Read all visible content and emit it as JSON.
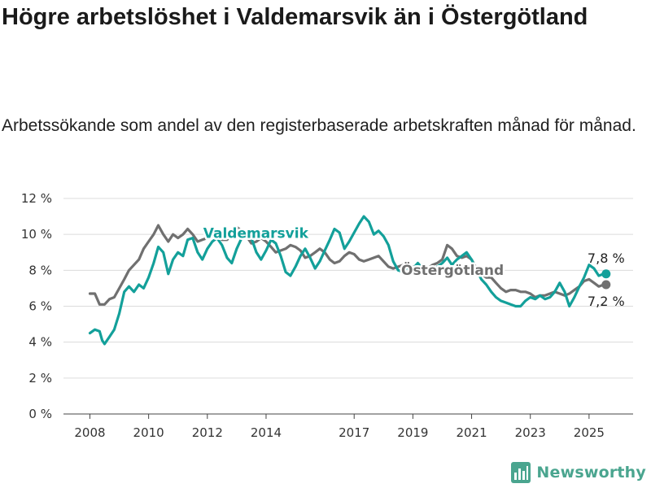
{
  "header": {
    "title": "Högre arbetslöshet i Valdemarsvik än i Östergötland",
    "subtitle": "Arbetssökande som andel av den registerbaserade arbetskraften månad för månad."
  },
  "brand": {
    "name": "Newsworthy",
    "color": "#4aa58f",
    "icon": "bar-chart-icon"
  },
  "chart_data": {
    "type": "line",
    "x_ticks": [
      "2008",
      "2010",
      "2012",
      "2014",
      "2017",
      "2019",
      "2021",
      "2023",
      "2025"
    ],
    "y_ticks": [
      "0 %",
      "2 %",
      "4 %",
      "6 %",
      "8 %",
      "10 %",
      "12 %"
    ],
    "ylim": [
      0,
      12
    ],
    "xlim": [
      2007.1,
      2026.5
    ],
    "grid": true,
    "series": [
      {
        "name": "Östergötland",
        "color": "#707070",
        "end_label": "7,2 %",
        "points": [
          [
            2008.0,
            6.7
          ],
          [
            2008.17,
            6.7
          ],
          [
            2008.33,
            6.1
          ],
          [
            2008.5,
            6.1
          ],
          [
            2008.67,
            6.4
          ],
          [
            2008.83,
            6.5
          ],
          [
            2009.0,
            7.0
          ],
          [
            2009.17,
            7.5
          ],
          [
            2009.33,
            8.0
          ],
          [
            2009.5,
            8.3
          ],
          [
            2009.67,
            8.6
          ],
          [
            2009.83,
            9.2
          ],
          [
            2010.0,
            9.6
          ],
          [
            2010.17,
            10.0
          ],
          [
            2010.33,
            10.5
          ],
          [
            2010.5,
            10.0
          ],
          [
            2010.67,
            9.6
          ],
          [
            2010.83,
            10.0
          ],
          [
            2011.0,
            9.8
          ],
          [
            2011.17,
            10.0
          ],
          [
            2011.33,
            10.3
          ],
          [
            2011.5,
            10.0
          ],
          [
            2011.67,
            9.6
          ],
          [
            2011.83,
            9.7
          ],
          [
            2012.0,
            9.8
          ],
          [
            2012.17,
            9.9
          ],
          [
            2012.33,
            10.0
          ],
          [
            2012.5,
            9.7
          ],
          [
            2012.67,
            9.7
          ],
          [
            2012.83,
            10.0
          ],
          [
            2013.0,
            10.4
          ],
          [
            2013.17,
            10.2
          ],
          [
            2013.33,
            9.9
          ],
          [
            2013.5,
            9.5
          ],
          [
            2013.67,
            9.6
          ],
          [
            2013.83,
            9.8
          ],
          [
            2014.0,
            9.6
          ],
          [
            2014.17,
            9.3
          ],
          [
            2014.33,
            9.0
          ],
          [
            2014.5,
            9.1
          ],
          [
            2014.67,
            9.2
          ],
          [
            2014.83,
            9.4
          ],
          [
            2015.0,
            9.3
          ],
          [
            2015.17,
            9.1
          ],
          [
            2015.33,
            8.7
          ],
          [
            2015.5,
            8.8
          ],
          [
            2015.67,
            9.0
          ],
          [
            2015.83,
            9.2
          ],
          [
            2016.0,
            9.0
          ],
          [
            2016.17,
            8.6
          ],
          [
            2016.33,
            8.4
          ],
          [
            2016.5,
            8.5
          ],
          [
            2016.67,
            8.8
          ],
          [
            2016.83,
            9.0
          ],
          [
            2017.0,
            8.9
          ],
          [
            2017.17,
            8.6
          ],
          [
            2017.33,
            8.5
          ],
          [
            2017.5,
            8.6
          ],
          [
            2017.67,
            8.7
          ],
          [
            2017.83,
            8.8
          ],
          [
            2018.0,
            8.5
          ],
          [
            2018.17,
            8.2
          ],
          [
            2018.33,
            8.1
          ],
          [
            2018.5,
            8.2
          ],
          [
            2018.67,
            8.3
          ],
          [
            2018.83,
            8.3
          ],
          [
            2019.0,
            8.2
          ],
          [
            2019.17,
            8.1
          ],
          [
            2019.33,
            8.0
          ],
          [
            2019.5,
            8.1
          ],
          [
            2019.67,
            8.3
          ],
          [
            2019.83,
            8.4
          ],
          [
            2020.0,
            8.6
          ],
          [
            2020.17,
            9.4
          ],
          [
            2020.33,
            9.2
          ],
          [
            2020.5,
            8.8
          ],
          [
            2020.67,
            8.7
          ],
          [
            2020.83,
            8.8
          ],
          [
            2021.0,
            8.6
          ],
          [
            2021.17,
            8.1
          ],
          [
            2021.33,
            7.8
          ],
          [
            2021.5,
            7.6
          ],
          [
            2021.67,
            7.6
          ],
          [
            2021.83,
            7.3
          ],
          [
            2022.0,
            7.0
          ],
          [
            2022.17,
            6.8
          ],
          [
            2022.33,
            6.9
          ],
          [
            2022.5,
            6.9
          ],
          [
            2022.67,
            6.8
          ],
          [
            2022.83,
            6.8
          ],
          [
            2023.0,
            6.7
          ],
          [
            2023.17,
            6.5
          ],
          [
            2023.33,
            6.6
          ],
          [
            2023.5,
            6.6
          ],
          [
            2023.67,
            6.7
          ],
          [
            2023.83,
            6.8
          ],
          [
            2024.0,
            6.7
          ],
          [
            2024.17,
            6.6
          ],
          [
            2024.33,
            6.7
          ],
          [
            2024.5,
            6.9
          ],
          [
            2024.67,
            7.1
          ],
          [
            2024.83,
            7.4
          ],
          [
            2025.0,
            7.5
          ],
          [
            2025.17,
            7.3
          ],
          [
            2025.33,
            7.1
          ],
          [
            2025.5,
            7.2
          ],
          [
            2025.58,
            7.2
          ]
        ]
      },
      {
        "name": "Valdemarsvik",
        "color": "#13a09a",
        "end_label": "7,8 %",
        "points": [
          [
            2008.0,
            4.5
          ],
          [
            2008.17,
            4.7
          ],
          [
            2008.33,
            4.6
          ],
          [
            2008.42,
            4.1
          ],
          [
            2008.5,
            3.9
          ],
          [
            2008.67,
            4.3
          ],
          [
            2008.83,
            4.7
          ],
          [
            2009.0,
            5.6
          ],
          [
            2009.17,
            6.8
          ],
          [
            2009.33,
            7.1
          ],
          [
            2009.5,
            6.8
          ],
          [
            2009.67,
            7.2
          ],
          [
            2009.83,
            7.0
          ],
          [
            2010.0,
            7.6
          ],
          [
            2010.17,
            8.4
          ],
          [
            2010.33,
            9.3
          ],
          [
            2010.5,
            9.0
          ],
          [
            2010.67,
            7.8
          ],
          [
            2010.83,
            8.6
          ],
          [
            2011.0,
            9.0
          ],
          [
            2011.17,
            8.8
          ],
          [
            2011.33,
            9.7
          ],
          [
            2011.5,
            9.8
          ],
          [
            2011.67,
            9.0
          ],
          [
            2011.83,
            8.6
          ],
          [
            2012.0,
            9.2
          ],
          [
            2012.17,
            9.6
          ],
          [
            2012.33,
            9.8
          ],
          [
            2012.5,
            9.4
          ],
          [
            2012.67,
            8.7
          ],
          [
            2012.83,
            8.4
          ],
          [
            2013.0,
            9.2
          ],
          [
            2013.17,
            9.8
          ],
          [
            2013.33,
            10.2
          ],
          [
            2013.5,
            9.8
          ],
          [
            2013.67,
            9.0
          ],
          [
            2013.83,
            8.6
          ],
          [
            2014.0,
            9.1
          ],
          [
            2014.17,
            9.7
          ],
          [
            2014.33,
            9.5
          ],
          [
            2014.5,
            8.8
          ],
          [
            2014.67,
            7.9
          ],
          [
            2014.83,
            7.7
          ],
          [
            2015.0,
            8.2
          ],
          [
            2015.17,
            8.8
          ],
          [
            2015.33,
            9.2
          ],
          [
            2015.5,
            8.7
          ],
          [
            2015.67,
            8.1
          ],
          [
            2015.83,
            8.5
          ],
          [
            2016.0,
            9.1
          ],
          [
            2016.17,
            9.7
          ],
          [
            2016.33,
            10.3
          ],
          [
            2016.5,
            10.1
          ],
          [
            2016.67,
            9.2
          ],
          [
            2016.83,
            9.6
          ],
          [
            2017.0,
            10.1
          ],
          [
            2017.17,
            10.6
          ],
          [
            2017.33,
            11.0
          ],
          [
            2017.5,
            10.7
          ],
          [
            2017.67,
            10.0
          ],
          [
            2017.83,
            10.2
          ],
          [
            2018.0,
            9.9
          ],
          [
            2018.17,
            9.4
          ],
          [
            2018.33,
            8.5
          ],
          [
            2018.5,
            8.0
          ],
          [
            2018.67,
            7.9
          ],
          [
            2018.83,
            8.2
          ],
          [
            2019.0,
            8.1
          ],
          [
            2019.17,
            8.4
          ],
          [
            2019.33,
            8.1
          ],
          [
            2019.5,
            7.9
          ],
          [
            2019.67,
            8.0
          ],
          [
            2019.83,
            8.2
          ],
          [
            2020.0,
            8.4
          ],
          [
            2020.17,
            8.7
          ],
          [
            2020.33,
            8.3
          ],
          [
            2020.5,
            8.6
          ],
          [
            2020.67,
            8.8
          ],
          [
            2020.83,
            9.0
          ],
          [
            2021.0,
            8.6
          ],
          [
            2021.17,
            8.0
          ],
          [
            2021.33,
            7.5
          ],
          [
            2021.5,
            7.2
          ],
          [
            2021.67,
            6.8
          ],
          [
            2021.83,
            6.5
          ],
          [
            2022.0,
            6.3
          ],
          [
            2022.17,
            6.2
          ],
          [
            2022.33,
            6.1
          ],
          [
            2022.5,
            6.0
          ],
          [
            2022.67,
            6.0
          ],
          [
            2022.83,
            6.3
          ],
          [
            2023.0,
            6.5
          ],
          [
            2023.17,
            6.4
          ],
          [
            2023.33,
            6.6
          ],
          [
            2023.5,
            6.4
          ],
          [
            2023.67,
            6.5
          ],
          [
            2023.83,
            6.8
          ],
          [
            2024.0,
            7.3
          ],
          [
            2024.17,
            6.8
          ],
          [
            2024.33,
            6.0
          ],
          [
            2024.5,
            6.5
          ],
          [
            2024.67,
            7.1
          ],
          [
            2024.83,
            7.6
          ],
          [
            2025.0,
            8.3
          ],
          [
            2025.17,
            8.1
          ],
          [
            2025.33,
            7.7
          ],
          [
            2025.5,
            7.8
          ],
          [
            2025.58,
            7.8
          ]
        ]
      }
    ]
  }
}
